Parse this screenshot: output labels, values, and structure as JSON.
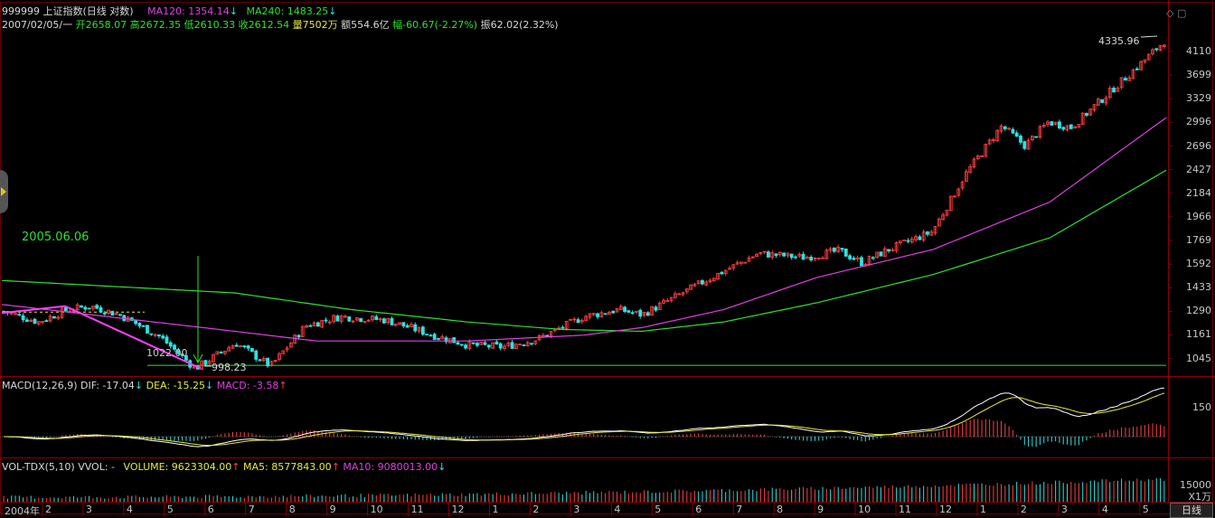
{
  "header": {
    "security": "999999 上证指数(日线 对数)",
    "ma120": "MA120: 1354.14",
    "ma240": "MA240: 1483.25",
    "quote_date": "2007/02/05/一",
    "open": "开2658.07",
    "high": "高2672.35",
    "low": "低2610.33",
    "close": "收2612.54",
    "volume": "量7502万",
    "amount": "额554.6亿",
    "change": "幅-60.67(-2.27%)",
    "amplitude": "振62.02(2.32%)"
  },
  "macd_header": {
    "name": "MACD(12,26,9)",
    "dif": "DIF: -17.04",
    "dea": "DEA: -15.25",
    "macd": "MACD: -3.58"
  },
  "vol_header": {
    "name": "VOL-TDX(5,10)",
    "vvol": "VVOL: -",
    "volume": "VOLUME: 9623304.00",
    "ma5": "MA5: 8577843.00",
    "ma10": "MA10: 9080013.00"
  },
  "arrows": {
    "down": "↓",
    "up": "↑"
  },
  "annotations": {
    "date_marker": "2005.06.06",
    "low_label": "998.23",
    "low_left_label": "1022.00",
    "high_label": "4335.96"
  },
  "buttons": {
    "dayline": "日线",
    "unit": "X1万"
  },
  "colors": {
    "background": "#000000",
    "ma120": "#e040e0",
    "ma240": "#30e030",
    "up_candle": "#ff4040",
    "down_candle": "#30e0e0",
    "dif": "#ffffff",
    "dea": "#e8e840"
  },
  "chart_data": {
    "type": "candlestick",
    "scale": "log",
    "price_ticks": [
      1045,
      1161,
      1290,
      1433,
      1592,
      1769,
      1966,
      2184,
      2427,
      2696,
      2996,
      3329,
      3699,
      4110
    ],
    "macd_ticks": [
      150.0
    ],
    "volume_ticks": [
      15000
    ],
    "months": [
      "2004年",
      "2",
      "3",
      "4",
      "5",
      "6",
      "7",
      "8",
      "9",
      "10",
      "11",
      "12",
      "1",
      "2",
      "3",
      "4",
      "5",
      "6",
      "7",
      "8",
      "9",
      "10",
      "11",
      "12",
      "1",
      "2",
      "3",
      "4",
      "5"
    ],
    "price_path": {
      "t": [
        0,
        0.03,
        0.055,
        0.075,
        0.1,
        0.135,
        0.165,
        0.2,
        0.23,
        0.26,
        0.29,
        0.33,
        0.37,
        0.4,
        0.43,
        0.46,
        0.5,
        0.53,
        0.55,
        0.6,
        0.65,
        0.69,
        0.72,
        0.74,
        0.76,
        0.8,
        0.83,
        0.86,
        0.88,
        0.9,
        0.92,
        0.95,
        0.98,
        1.0
      ],
      "v": [
        1290,
        1230,
        1300,
        1320,
        1270,
        1150,
        1000,
        1120,
        1010,
        1210,
        1260,
        1240,
        1160,
        1110,
        1100,
        1140,
        1260,
        1300,
        1270,
        1460,
        1670,
        1640,
        1690,
        1600,
        1690,
        1840,
        2400,
        2950,
        2700,
        3000,
        2930,
        3380,
        3900,
        4300
      ]
    },
    "ma120_path": {
      "t": [
        0,
        0.2,
        0.27,
        0.4,
        0.5,
        0.55,
        0.62,
        0.7,
        0.8,
        0.9,
        1.0
      ],
      "v": [
        1330,
        1180,
        1130,
        1130,
        1160,
        1200,
        1300,
        1500,
        1700,
        2100,
        3060
      ]
    },
    "ma240_path": {
      "t": [
        0,
        0.2,
        0.3,
        0.4,
        0.48,
        0.55,
        0.62,
        0.7,
        0.8,
        0.9,
        1.0
      ],
      "v": [
        1480,
        1400,
        1300,
        1230,
        1190,
        1180,
        1230,
        1340,
        1520,
        1790,
        2420
      ]
    }
  }
}
